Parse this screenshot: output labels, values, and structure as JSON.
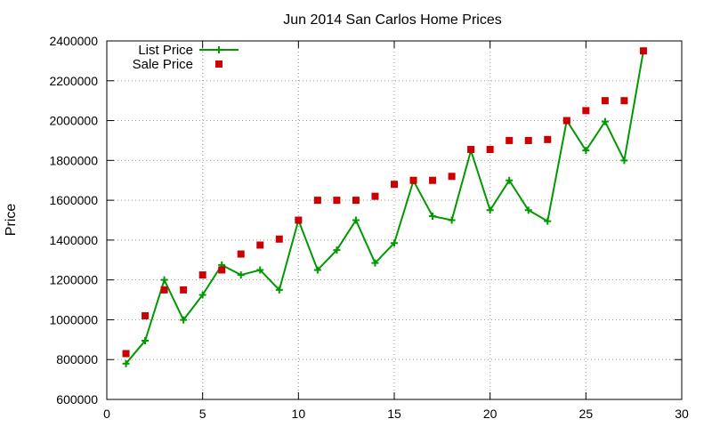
{
  "chart_data": {
    "type": "line",
    "title": "Jun 2014 San Carlos Home Prices",
    "xlabel": "",
    "ylabel": "Price",
    "xlim": [
      0,
      30
    ],
    "ylim": [
      600000,
      2400000
    ],
    "xticks": [
      0,
      5,
      10,
      15,
      20,
      25,
      30
    ],
    "yticks": [
      600000,
      800000,
      1000000,
      1200000,
      1400000,
      1600000,
      1800000,
      2000000,
      2200000,
      2400000
    ],
    "grid": true,
    "legend_position": "top-left",
    "series": [
      {
        "name": "List Price",
        "style": "line-with-plus-markers",
        "color": "#009900",
        "x": [
          1,
          2,
          3,
          4,
          5,
          6,
          7,
          8,
          9,
          10,
          11,
          12,
          13,
          14,
          15,
          16,
          17,
          18,
          19,
          20,
          21,
          22,
          23,
          24,
          25,
          26,
          27,
          28
        ],
        "values": [
          780000,
          895000,
          1200000,
          999000,
          1125000,
          1275000,
          1225000,
          1250000,
          1150000,
          1500000,
          1250000,
          1350000,
          1500000,
          1285000,
          1385000,
          1698000,
          1520000,
          1500000,
          1850000,
          1550000,
          1700000,
          1550000,
          1495000,
          2000000,
          1850000,
          1995000,
          1800000,
          2350000
        ]
      },
      {
        "name": "Sale Price",
        "style": "square-markers",
        "color": "#cc0000",
        "x": [
          1,
          2,
          3,
          4,
          5,
          6,
          7,
          8,
          9,
          10,
          11,
          12,
          13,
          14,
          15,
          16,
          17,
          18,
          19,
          20,
          21,
          22,
          23,
          24,
          25,
          26,
          27,
          28
        ],
        "values": [
          830000,
          1020000,
          1150000,
          1150000,
          1225000,
          1250000,
          1330000,
          1375000,
          1405000,
          1500000,
          1600000,
          1600000,
          1600000,
          1620000,
          1680000,
          1700000,
          1700000,
          1720000,
          1855000,
          1855000,
          1900000,
          1900000,
          1905000,
          2000000,
          2050000,
          2100000,
          2100000,
          2350000
        ]
      }
    ]
  }
}
